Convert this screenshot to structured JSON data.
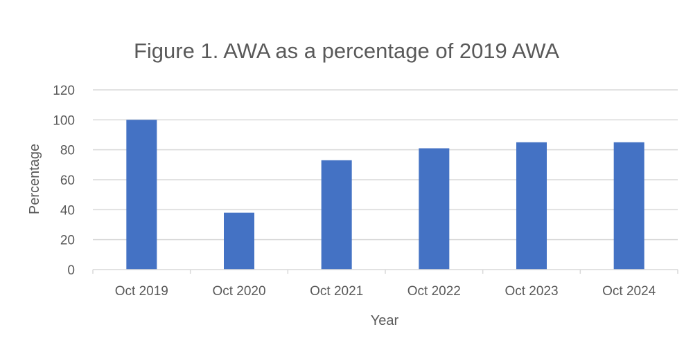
{
  "chart_data": {
    "type": "bar",
    "title": "Figure 1. AWA as a percentage of 2019 AWA",
    "xlabel": "Year",
    "ylabel": "Percentage",
    "categories": [
      "Oct 2019",
      "Oct 2020",
      "Oct 2021",
      "Oct 2022",
      "Oct 2023",
      "Oct 2024"
    ],
    "values": [
      100,
      38,
      73,
      81,
      85,
      85
    ],
    "ylim": [
      0,
      120
    ],
    "yticks": [
      "0",
      "20",
      "40",
      "60",
      "80",
      "100",
      "120"
    ],
    "grid": true,
    "legend": "none",
    "bar_color": "#4472C4",
    "grid_color": "#D9D9D9",
    "text_color": "#595959"
  }
}
